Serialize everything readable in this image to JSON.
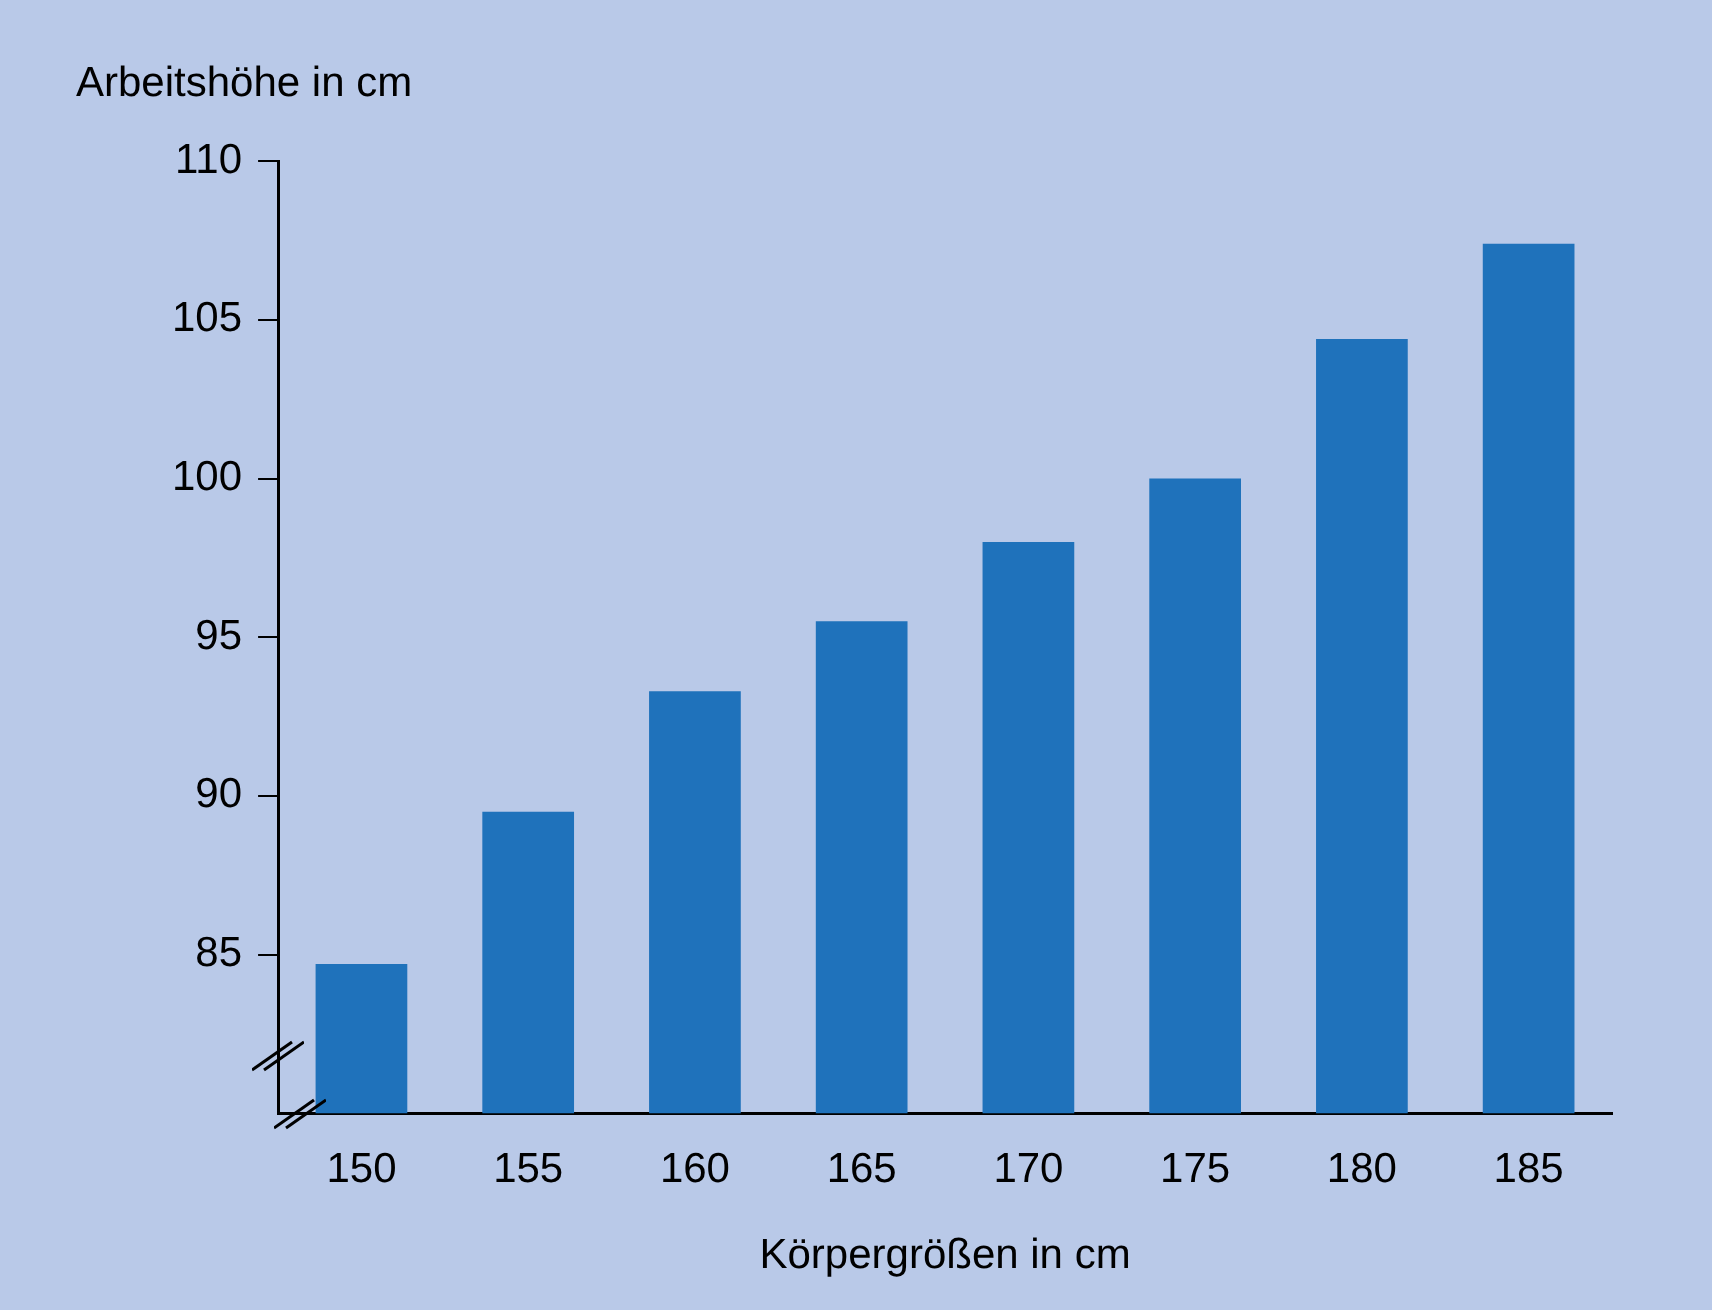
{
  "chart_data": {
    "type": "bar",
    "ylabel": "Arbeitshöhe in cm",
    "xlabel": "Körpergrößen in cm",
    "categories": [
      "150",
      "155",
      "160",
      "165",
      "170",
      "175",
      "180",
      "185"
    ],
    "values": [
      84.7,
      89.5,
      93.3,
      95.5,
      98,
      100,
      104.4,
      107.4
    ],
    "color": "#1f72bb",
    "ylim": [
      80,
      110
    ],
    "yticks": [
      85,
      90,
      95,
      100,
      105,
      110
    ],
    "grid": false,
    "legend": false
  }
}
